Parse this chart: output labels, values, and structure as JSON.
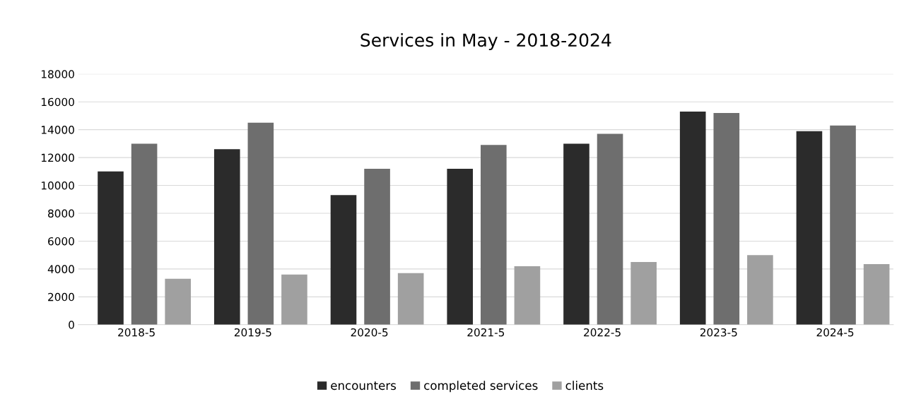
{
  "chart_data": {
    "type": "bar",
    "title": "Services in May - 2018-2024",
    "categories": [
      "2018-5",
      "2019-5",
      "2020-5",
      "2021-5",
      "2022-5",
      "2023-5",
      "2024-5"
    ],
    "series": [
      {
        "name": "encounters",
        "color": "#2b2b2b",
        "values": [
          11000,
          12600,
          9300,
          11200,
          13000,
          15300,
          13900
        ]
      },
      {
        "name": "completed services",
        "color": "#6e6e6e",
        "values": [
          13000,
          14500,
          11200,
          12900,
          13700,
          15200,
          14300
        ]
      },
      {
        "name": "clients",
        "color": "#a0a0a0",
        "values": [
          3300,
          3600,
          3700,
          4200,
          4500,
          5000,
          4350
        ]
      }
    ],
    "ylim": [
      0,
      18000
    ],
    "yticks": [
      0,
      2000,
      4000,
      6000,
      8000,
      10000,
      12000,
      14000,
      16000,
      18000
    ],
    "grid": "y",
    "legend": "bottom"
  }
}
